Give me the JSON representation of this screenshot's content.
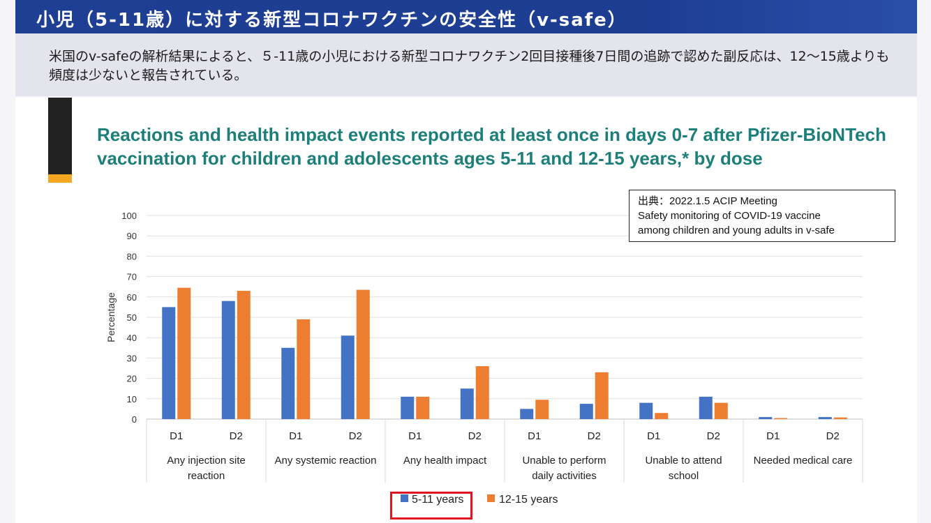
{
  "header": {
    "title": "小児（5-11歳）に対する新型コロナワクチンの安全性（v-safe）"
  },
  "summary": {
    "text": "米国のv-safeの解析結果によると、５-11歳の小児における新型コロナワクチン2回目接種後7日間の追跡で認めた副反応は、12〜15歳よりも頻度は少ないと報告されている。"
  },
  "source": {
    "line1": "出典：2022.1.5 ACIP Meeting",
    "line2": "Safety monitoring of COVID-19 vaccine",
    "line3": "among children and young adults in v-safe"
  },
  "colors": {
    "series1": "#4472c4",
    "series2": "#ed7d31",
    "title": "#1d7f7a",
    "highlight": "#e0141e"
  },
  "chart_data": {
    "type": "bar",
    "title": "Reactions and health impact events reported at least once in days 0-7 after Pfizer-BioNTech vaccination for children and adolescents ages 5-11 and 12-15 years,* by dose",
    "ylabel": "Percentage",
    "xlabel": "",
    "ylim": [
      0,
      100
    ],
    "yticks": [
      0,
      10,
      20,
      30,
      40,
      50,
      60,
      70,
      80,
      90,
      100
    ],
    "grid": true,
    "legend_position": "bottom",
    "groups": [
      {
        "label": "Any injection site reaction",
        "label_lines": [
          "Any injection site",
          "reaction"
        ],
        "doses": [
          "D1",
          "D2"
        ]
      },
      {
        "label": "Any systemic reaction",
        "label_lines": [
          "Any systemic reaction"
        ],
        "doses": [
          "D1",
          "D2"
        ]
      },
      {
        "label": "Any health impact",
        "label_lines": [
          "Any health impact"
        ],
        "doses": [
          "D1",
          "D2"
        ]
      },
      {
        "label": "Unable to perform daily activities",
        "label_lines": [
          "Unable to perform",
          "daily activities"
        ],
        "doses": [
          "D1",
          "D2"
        ]
      },
      {
        "label": "Unable to attend school",
        "label_lines": [
          "Unable to attend",
          "school"
        ],
        "doses": [
          "D1",
          "D2"
        ]
      },
      {
        "label": "Needed medical care",
        "label_lines": [
          "Needed medical care"
        ],
        "doses": [
          "D1",
          "D2"
        ]
      }
    ],
    "series": [
      {
        "name": "5-11 years",
        "values": [
          55,
          58,
          35,
          41,
          11,
          15,
          5,
          7.5,
          8,
          11,
          1,
          1
        ]
      },
      {
        "name": "12-15 years",
        "values": [
          64.5,
          63,
          49,
          63.5,
          11,
          26,
          9.5,
          23,
          3,
          8,
          0.5,
          0.8
        ]
      }
    ]
  }
}
